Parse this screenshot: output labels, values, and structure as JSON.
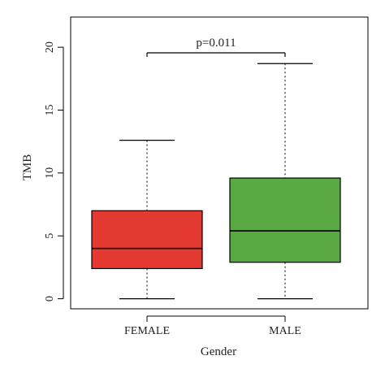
{
  "chart_data": {
    "type": "box",
    "xlabel": "Gender",
    "ylabel": "TMB",
    "ylim": [
      -0.8,
      22.4
    ],
    "yticks": [
      0,
      5,
      10,
      15,
      20
    ],
    "annotation": "p=0.011",
    "categories": [
      "FEMALE",
      "MALE"
    ],
    "boxes": [
      {
        "label": "FEMALE",
        "color": "#e53a32",
        "whisker_low": 0.0,
        "q1": 2.4,
        "median": 4.0,
        "q3": 7.0,
        "whisker_high": 12.6
      },
      {
        "label": "MALE",
        "color": "#5aaa44",
        "whisker_low": 0.0,
        "q1": 2.9,
        "median": 5.4,
        "q3": 9.6,
        "whisker_high": 18.7
      }
    ]
  }
}
